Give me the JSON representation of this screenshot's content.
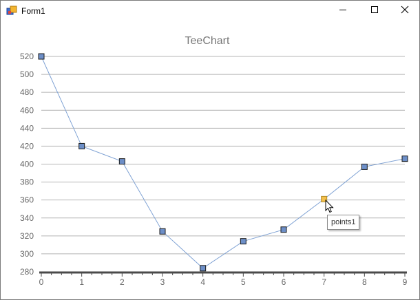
{
  "window": {
    "title": "Form1",
    "controls": [
      "minimize-icon",
      "maximize-icon",
      "close-icon"
    ]
  },
  "tooltip": {
    "text": "points1"
  },
  "colors": {
    "line": "#7fa2d4",
    "marker": "#6d8fc8",
    "marker_highlight": "#f4c04c",
    "grid": "#b4b4b4",
    "axis": "#4a4a4a",
    "tick_text": "#666666"
  },
  "chart_data": {
    "type": "line",
    "title": "TeeChart",
    "xlabel": "",
    "ylabel": "",
    "x": [
      0,
      1,
      2,
      3,
      4,
      5,
      6,
      7,
      8,
      9
    ],
    "xlim": [
      0,
      9
    ],
    "ylim": [
      280,
      520
    ],
    "x_ticks": [
      "0",
      "1",
      "2",
      "3",
      "4",
      "5",
      "6",
      "7",
      "8",
      "9"
    ],
    "y_ticks": [
      "280",
      "300",
      "320",
      "340",
      "360",
      "380",
      "400",
      "420",
      "440",
      "460",
      "480",
      "500",
      "520"
    ],
    "grid": true,
    "legend": "none",
    "series": [
      {
        "values": [
          520,
          420,
          403,
          325,
          284,
          314,
          327,
          361,
          397,
          406
        ],
        "markers": "square",
        "highlighted_index": 7
      }
    ]
  }
}
